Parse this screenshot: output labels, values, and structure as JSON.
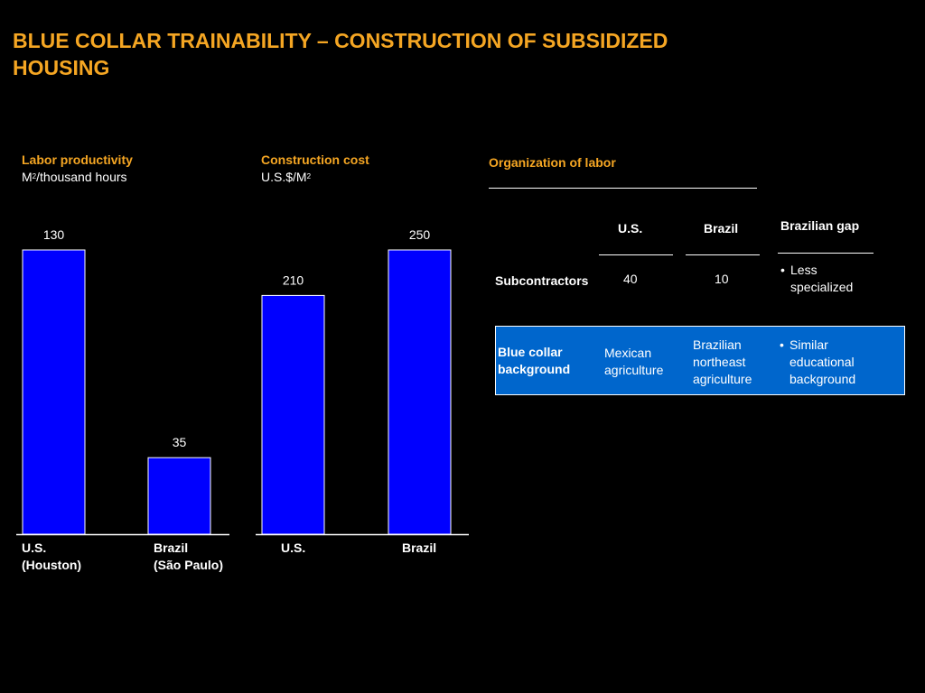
{
  "title": "BLUE COLLAR TRAINABILITY – CONSTRUCTION  OF SUBSIDIZED HOUSING",
  "colors": {
    "accent": "#f5a623",
    "bar": "#0000ff",
    "panel": "#0066cc",
    "background": "#000000"
  },
  "chart_data": [
    {
      "type": "bar",
      "title": "Labor productivity",
      "unit_prefix": "M",
      "unit_sup": "2",
      "unit_suffix": "/thousand hours",
      "categories": [
        {
          "line1": "U.S.",
          "line2": "(Houston)"
        },
        {
          "line1": "Brazil",
          "line2": "(São Paulo)"
        }
      ],
      "values": [
        130,
        35
      ],
      "value_labels": [
        "130",
        "35"
      ],
      "ylim": [
        0,
        130
      ]
    },
    {
      "type": "bar",
      "title": "Construction cost",
      "unit_prefix": "U.S.$/M",
      "unit_sup": "2",
      "unit_suffix": "",
      "categories": [
        {
          "line1": "U.S.",
          "line2": ""
        },
        {
          "line1": "Brazil",
          "line2": ""
        }
      ],
      "values": [
        210,
        250
      ],
      "value_labels": [
        "210",
        "250"
      ],
      "ylim": [
        0,
        250
      ]
    }
  ],
  "org": {
    "title": "Organization of labor",
    "columns": {
      "us": "U.S.",
      "brazil": "Brazil",
      "gap": "Brazilian gap"
    },
    "rows": [
      {
        "label": "Subcontractors",
        "us": "40",
        "brazil": "10",
        "gap": "Less specialized"
      },
      {
        "label": "Blue collar background",
        "us": "Mexican agriculture",
        "brazil": "Brazilian northeast agriculture",
        "gap": "Similar educational background"
      }
    ]
  }
}
